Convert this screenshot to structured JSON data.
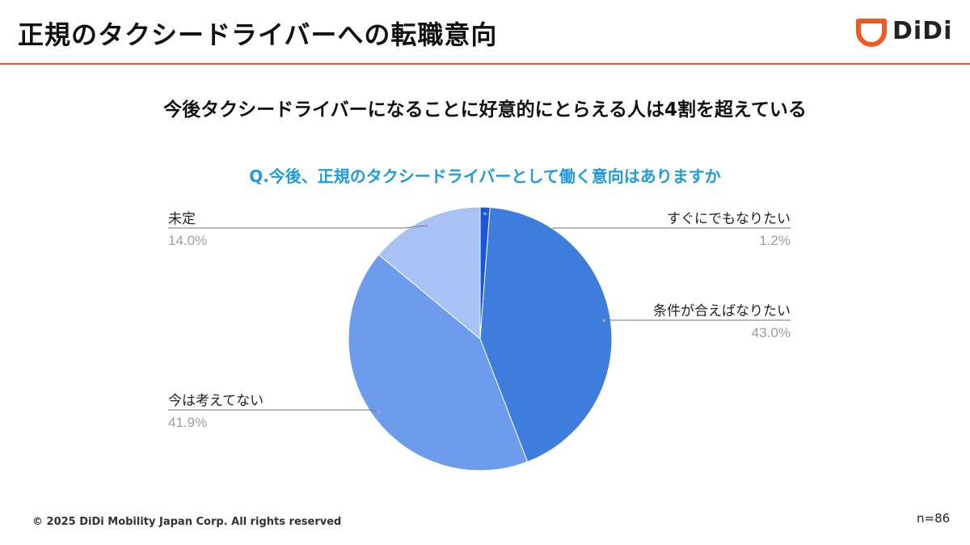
{
  "header": {
    "title": "正規のタクシードライバーへの転職意向",
    "logo_text": "DiDi",
    "accent_color": "#f05a22"
  },
  "subtitle": "今後タクシードライバーになることに好意的にとらえる人は4割を超えている",
  "question": "Q.今後、正規のタクシードライバーとして働く意向はありますか",
  "chart_data": {
    "type": "pie",
    "title": "Q.今後、正規のタクシードライバーとして働く意向はありますか",
    "slices": [
      {
        "label": "すぐにでもなりたい",
        "value": 1.2,
        "value_label": "1.2%",
        "color": "#1a56db"
      },
      {
        "label": "条件が合えばなりたい",
        "value": 43.0,
        "value_label": "43.0%",
        "color": "#3f7ddd"
      },
      {
        "label": "今は考えてない",
        "value": 41.9,
        "value_label": "41.9%",
        "color": "#6d9cec"
      },
      {
        "label": "未定",
        "value": 14.0,
        "value_label": "14.0%",
        "color": "#a9c2f5"
      }
    ],
    "start": "12 o'clock",
    "direction": "clockwise",
    "label_color": "#222222",
    "value_color": "#9e9e9e",
    "leader_color": "#757575"
  },
  "footer": {
    "copyright": "© 2025 DiDi Mobility Japan Corp. All rights reserved",
    "sample_size": "n=86"
  }
}
